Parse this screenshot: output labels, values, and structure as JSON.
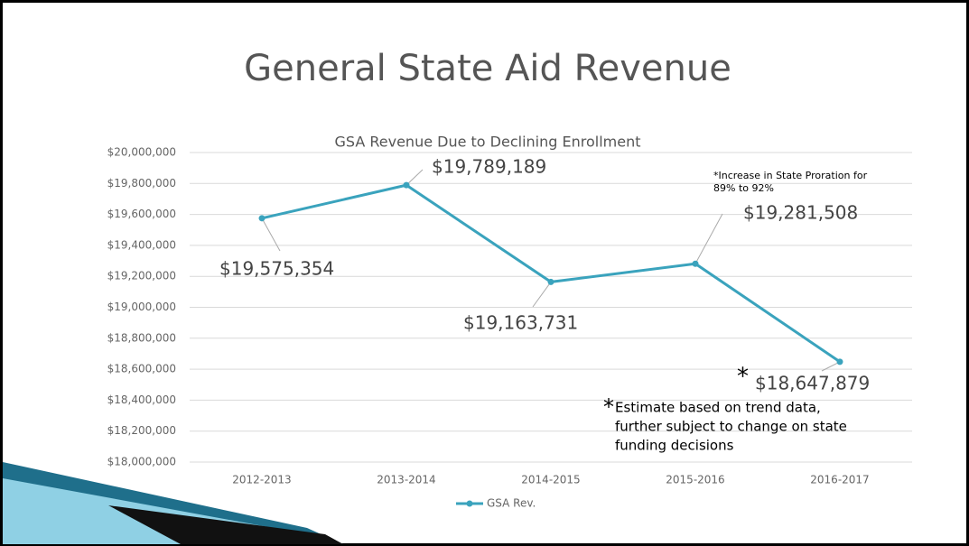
{
  "slide_title": "General State Aid Revenue",
  "chart_data": {
    "type": "line",
    "title": "GSA Revenue Due to Declining Enrollment",
    "categories": [
      "2012-2013",
      "2013-2014",
      "2014-2015",
      "2015-2016",
      "2016-2017"
    ],
    "series": [
      {
        "name": "GSA Rev.",
        "color": "#3aa3bd",
        "values": [
          19575354,
          19789189,
          19163731,
          19281508,
          18647879
        ],
        "value_labels": [
          "$19,575,354",
          "$19,789,189",
          "$19,163,731",
          "$19,281,508",
          "$18,647,879"
        ]
      }
    ],
    "ylim": [
      18000000,
      20000000
    ],
    "yticks": [
      {
        "value": 18000000,
        "label": "$18,000,000"
      },
      {
        "value": 18200000,
        "label": "$18,200,000"
      },
      {
        "value": 18400000,
        "label": "$18,400,000"
      },
      {
        "value": 18600000,
        "label": "$18,600,000"
      },
      {
        "value": 18800000,
        "label": "$18,800,000"
      },
      {
        "value": 19000000,
        "label": "$19,000,000"
      },
      {
        "value": 19200000,
        "label": "$19,200,000"
      },
      {
        "value": 19400000,
        "label": "$19,400,000"
      },
      {
        "value": 19600000,
        "label": "$19,600,000"
      },
      {
        "value": 19800000,
        "label": "$19,800,000"
      },
      {
        "value": 20000000,
        "label": "$20,000,000"
      }
    ],
    "grid": true,
    "legend": "bottom",
    "annotations": [
      "*Increase in State Proration for",
      "89% to 92%",
      "*",
      "*",
      "Estimate based on trend data,",
      "further subject to change on state",
      "funding decisions"
    ]
  }
}
